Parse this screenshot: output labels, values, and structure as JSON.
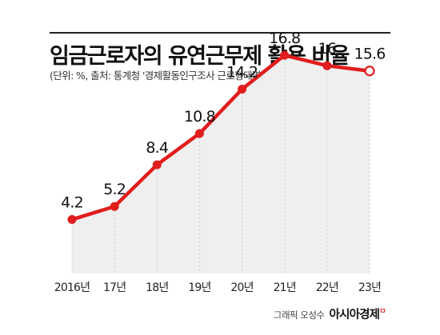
{
  "header": {
    "title": "임금근로자의 유연근무제 활용 비율",
    "subtitle": "(단위: %, 출처: 통계청 '경제활동인구조사 근로형태별 부가조사')"
  },
  "footer": {
    "credit": "그래픽 오성수",
    "brand": "아시아경제",
    "brand_mark": "ㅁ"
  },
  "chart_data": {
    "type": "line",
    "title": "임금근로자의 유연근무제 활용 비율",
    "categories": [
      "2016년",
      "17년",
      "18년",
      "19년",
      "20년",
      "21년",
      "22년",
      "23년"
    ],
    "values": [
      4.2,
      5.2,
      8.4,
      10.8,
      14.2,
      16.8,
      16,
      15.6
    ],
    "value_labels": [
      "4.2",
      "5.2",
      "8.4",
      "10.8",
      "14.2",
      "16.8",
      "16",
      "15.6"
    ],
    "ylim": [
      0,
      20
    ],
    "grid": false,
    "colors": {
      "line": "#e11d1d",
      "area": "#efefef",
      "guide": "#cccccc"
    }
  }
}
